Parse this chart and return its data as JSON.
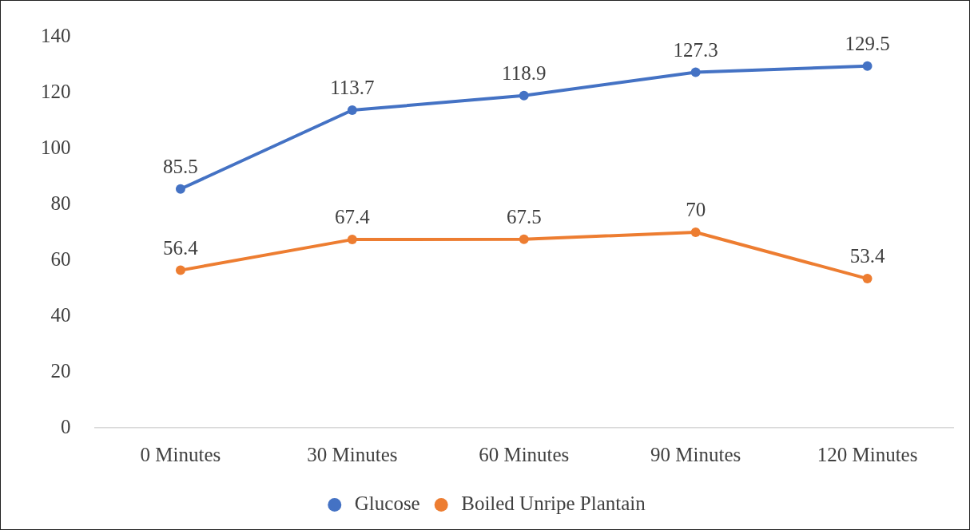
{
  "chart_data": {
    "type": "line",
    "categories": [
      "0 Minutes",
      "30 Minutes",
      "60 Minutes",
      "90 Minutes",
      "120 Minutes"
    ],
    "series": [
      {
        "name": "Glucose",
        "color": "#4472c4",
        "values": [
          85.5,
          113.7,
          118.9,
          127.3,
          129.5
        ]
      },
      {
        "name": "Boiled Unripe Plantain",
        "color": "#ed7d31",
        "values": [
          56.4,
          67.4,
          67.5,
          70,
          53.4
        ]
      }
    ],
    "ylim": [
      0,
      140
    ],
    "yticks": [
      0,
      20,
      40,
      60,
      80,
      100,
      120,
      140
    ],
    "grid": false,
    "legend": "bottom",
    "marker": "circle",
    "line_style": "solid",
    "data_labels": true
  }
}
